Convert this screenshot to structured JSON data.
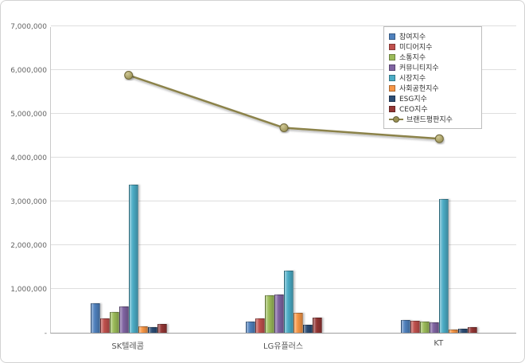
{
  "chart_data": {
    "type": "bar",
    "subtype": "grouped bars with overlaid line series (brand reputation index chart)",
    "title": "",
    "xlabel": "",
    "ylabel": "",
    "categories": [
      "SK텔레콤",
      "LG유플러스",
      "KT"
    ],
    "series": [
      {
        "name": "참여지수",
        "type": "bar",
        "color": "#4F81BD",
        "values": [
          680000,
          260000,
          300000
        ]
      },
      {
        "name": "미디어지수",
        "type": "bar",
        "color": "#C0504D",
        "values": [
          330000,
          330000,
          270000
        ]
      },
      {
        "name": "소통지수",
        "type": "bar",
        "color": "#9BBB59",
        "values": [
          470000,
          850000,
          260000
        ]
      },
      {
        "name": "커뮤니티지수",
        "type": "bar",
        "color": "#8064A2",
        "values": [
          600000,
          870000,
          240000
        ]
      },
      {
        "name": "시장지수",
        "type": "bar",
        "color": "#4BACC6",
        "values": [
          3380000,
          1420000,
          3050000
        ]
      },
      {
        "name": "사회공헌지수",
        "type": "bar",
        "color": "#F79646",
        "values": [
          150000,
          450000,
          70000
        ]
      },
      {
        "name": "ESG지수",
        "type": "bar",
        "color": "#2C4D75",
        "values": [
          130000,
          180000,
          90000
        ]
      },
      {
        "name": "CEO지수",
        "type": "bar",
        "color": "#943634",
        "values": [
          200000,
          350000,
          130000
        ]
      },
      {
        "name": "브랜드평판지수",
        "type": "line",
        "color": "#8B824A",
        "marker_fill": "#9A9154",
        "marker_edge": "#6F683A",
        "values": [
          5900000,
          4700000,
          4450000
        ]
      }
    ],
    "y_axis": {
      "min": 0,
      "max": 7000000,
      "step": 1000000,
      "tick_labels_bottom_to_top": [
        "-",
        "1,000,000",
        "2,000,000",
        "3,000,000",
        "4,000,000",
        "5,000,000",
        "6,000,000",
        "7,000,000"
      ]
    },
    "grid": true,
    "legend_position": "top-right"
  }
}
